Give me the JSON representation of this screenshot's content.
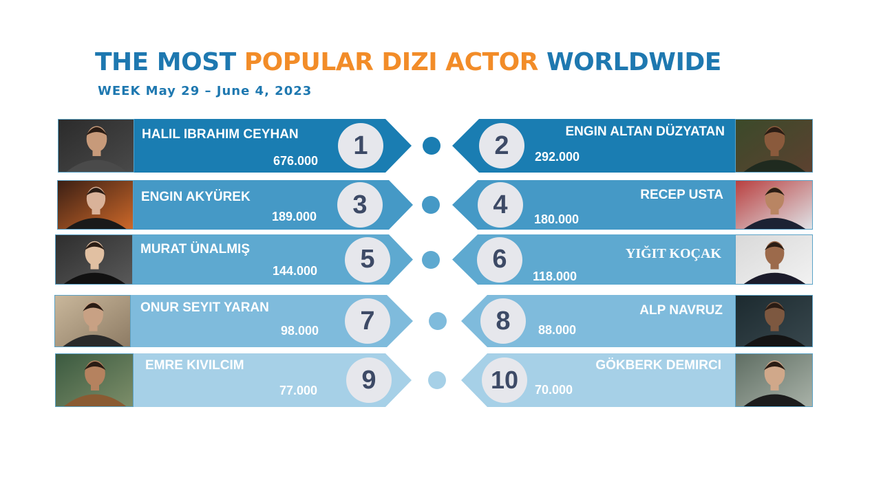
{
  "header": {
    "title_part1": "THE MOST ",
    "title_part2": "POPULAR DIZI ACTOR",
    "title_part3": " WORLDWIDE",
    "subtitle": "WEEK May 29 – June 4, 2023"
  },
  "colors": {
    "title_blue": "#1e78b0",
    "title_orange": "#f28c28",
    "row_1": "#1a7db2",
    "row_2": "#4599c6",
    "row_3": "#5ea9d0",
    "row_4": "#7fbbdc",
    "row_5": "#a6d0e7",
    "rank_badge": "#e6e7ec",
    "rank_text": "#3d4a66"
  },
  "ranking": [
    {
      "rank": "1",
      "name": "HALIL IBRAHIM CEYHAN",
      "score": "676.000"
    },
    {
      "rank": "2",
      "name": "ENGIN ALTAN DÜZYATAN",
      "score": "292.000"
    },
    {
      "rank": "3",
      "name": "ENGIN AKYÜREK",
      "score": "189.000"
    },
    {
      "rank": "4",
      "name": "RECEP USTA",
      "score": "180.000"
    },
    {
      "rank": "5",
      "name": "MURAT ÜNALMIŞ",
      "score": "144.000"
    },
    {
      "rank": "6",
      "name": "YIĞIT KOÇAK",
      "score": "118.000"
    },
    {
      "rank": "7",
      "name": "ONUR SEYIT YARAN",
      "score": "98.000"
    },
    {
      "rank": "8",
      "name": "ALP NAVRUZ",
      "score": "88.000"
    },
    {
      "rank": "9",
      "name": "EMRE KIVILCIM",
      "score": "77.000"
    },
    {
      "rank": "10",
      "name": "GÖKBERK DEMIRCI",
      "score": "70.000"
    }
  ]
}
